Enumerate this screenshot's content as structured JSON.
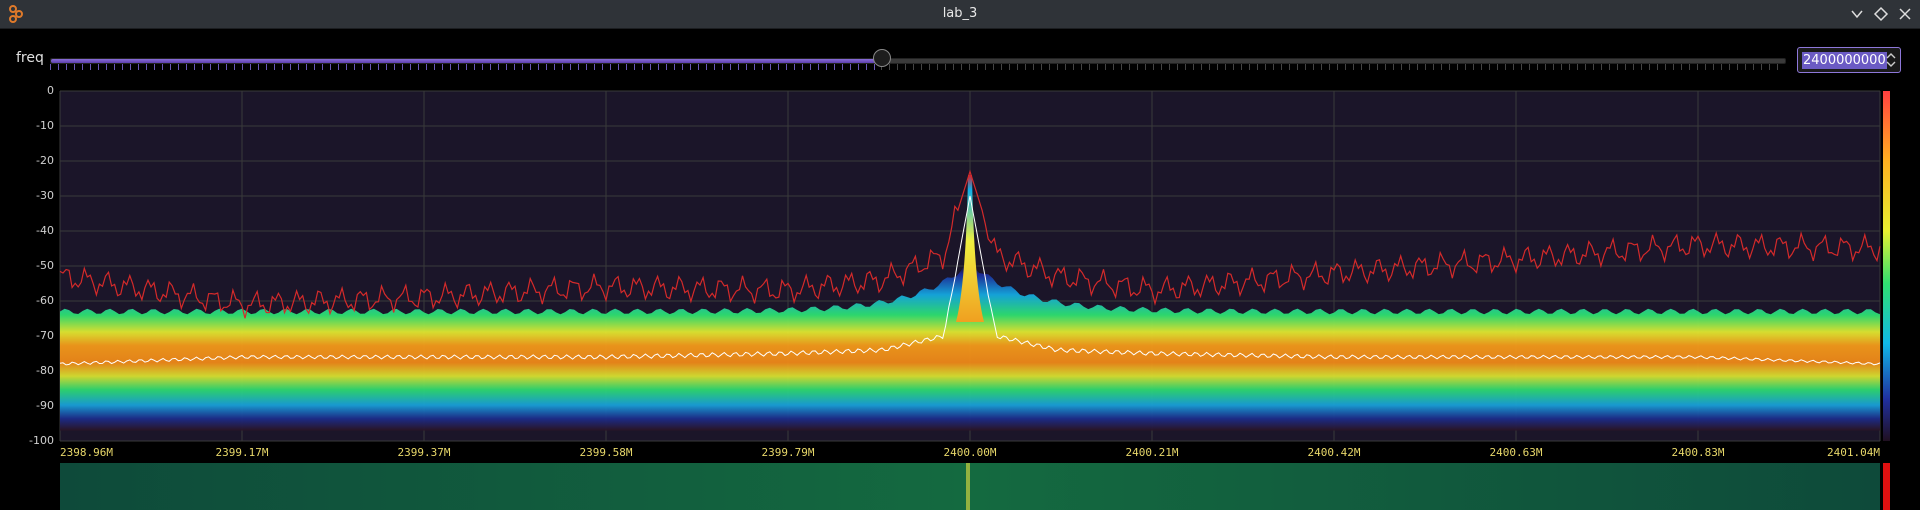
{
  "window": {
    "title": "lab_3",
    "controls": [
      "chevron-down-icon",
      "restore-icon",
      "close-icon"
    ]
  },
  "freq_control": {
    "label": "freq",
    "value": "2400000000",
    "slider_fraction": 0.479
  },
  "colors": {
    "accent": "#7f66d6",
    "max_hold_trace": "#d42a2a",
    "average_trace": "#ffffff",
    "axis_label": "#e8d86a"
  },
  "chart_data": {
    "type": "line",
    "xlabel": "",
    "ylabel": "",
    "ylim": [
      -100,
      0
    ],
    "y_ticks": [
      "0",
      "-10",
      "-20",
      "-30",
      "-40",
      "-50",
      "-60",
      "-70",
      "-80",
      "-90",
      "-100"
    ],
    "x_ticks": [
      "2398.96M",
      "2399.17M",
      "2399.37M",
      "2399.58M",
      "2399.79M",
      "2400.00M",
      "2400.21M",
      "2400.42M",
      "2400.63M",
      "2400.83M",
      "2401.04M"
    ],
    "x_range_mhz": [
      2398.96,
      2401.04
    ],
    "grid": true,
    "series": [
      {
        "color": "#d42a2a",
        "x": [
          2398.96,
          2399.17,
          2399.37,
          2399.58,
          2399.79,
          2399.9,
          2399.97,
          2400.0,
          2400.03,
          2400.1,
          2400.21,
          2400.42,
          2400.63,
          2400.83,
          2401.04
        ],
        "values": [
          -53,
          -61,
          -59,
          -56,
          -57,
          -54,
          -47,
          -23,
          -47,
          -53,
          -57,
          -52,
          -48,
          -44,
          -45
        ]
      },
      {
        "color": "#ffffff",
        "x": [
          2398.96,
          2399.17,
          2399.37,
          2399.58,
          2399.79,
          2399.9,
          2399.97,
          2400.0,
          2400.03,
          2400.1,
          2400.21,
          2400.42,
          2400.63,
          2400.83,
          2401.04
        ],
        "values": [
          -78,
          -76,
          -76,
          -76,
          -75,
          -74,
          -70,
          -30,
          -70,
          -74,
          -75,
          -76,
          -76,
          -76,
          -78
        ]
      }
    ],
    "colorbar": "heat scale (red top to black bottom)"
  }
}
